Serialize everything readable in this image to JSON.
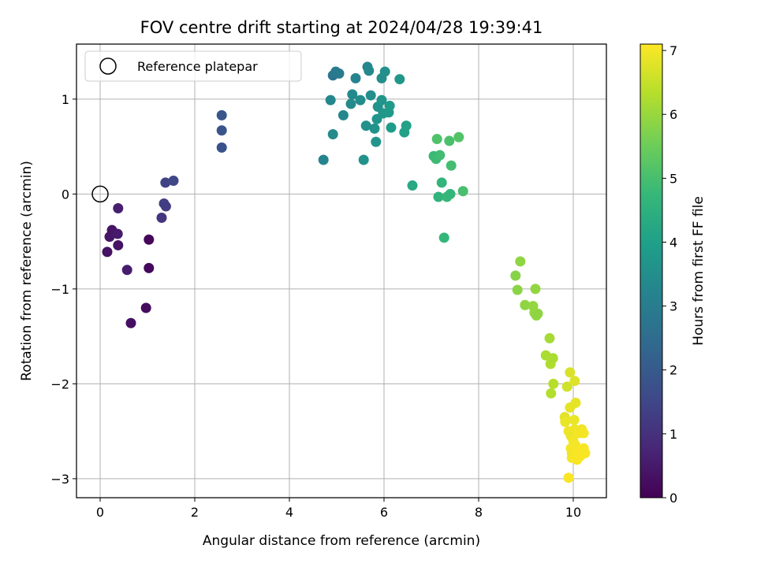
{
  "chart_data": {
    "type": "scatter",
    "title": "FOV centre drift starting at 2024/04/28 19:39:41",
    "xlabel": "Angular distance from reference (arcmin)",
    "ylabel": "Rotation from reference (arcmin)",
    "xlim": [
      -0.5,
      10.7
    ],
    "ylim": [
      -3.2,
      1.58
    ],
    "xticks": [
      0,
      2,
      4,
      6,
      8,
      10
    ],
    "yticks": [
      -3,
      -2,
      -1,
      0,
      1
    ],
    "xtick_labels": [
      "0",
      "2",
      "4",
      "6",
      "8",
      "10"
    ],
    "ytick_labels": [
      "−3",
      "−2",
      "−1",
      "0",
      "1"
    ],
    "grid": true,
    "legend": {
      "position": "top-left",
      "entries": [
        "Reference platepar"
      ]
    },
    "reference_point": {
      "x": 0,
      "y": 0,
      "label": "Reference platepar"
    },
    "colorbar": {
      "label": "Hours from first FF file",
      "colormap": "viridis",
      "range": [
        0,
        7.1
      ],
      "ticks": [
        0,
        1,
        2,
        3,
        4,
        5,
        6,
        7
      ],
      "tick_labels": [
        "0",
        "1",
        "2",
        "3",
        "4",
        "5",
        "6",
        "7"
      ]
    },
    "points": [
      {
        "x": 0.15,
        "y": -0.61,
        "h": 0.35
      },
      {
        "x": 0.2,
        "y": -0.45,
        "h": 0.45
      },
      {
        "x": 0.25,
        "y": -0.38,
        "h": 0.4
      },
      {
        "x": 0.37,
        "y": -0.42,
        "h": 0.5
      },
      {
        "x": 0.38,
        "y": -0.54,
        "h": 0.35
      },
      {
        "x": 0.38,
        "y": -0.15,
        "h": 0.6
      },
      {
        "x": 0.57,
        "y": -0.8,
        "h": 0.55
      },
      {
        "x": 0.65,
        "y": -1.36,
        "h": 0.3
      },
      {
        "x": 0.97,
        "y": -1.2,
        "h": 0.2
      },
      {
        "x": 1.03,
        "y": -0.48,
        "h": 0.1
      },
      {
        "x": 1.03,
        "y": -0.78,
        "h": 0.15
      },
      {
        "x": 1.3,
        "y": -0.25,
        "h": 1.1
      },
      {
        "x": 1.35,
        "y": -0.1,
        "h": 1.3
      },
      {
        "x": 1.39,
        "y": -0.13,
        "h": 1.25
      },
      {
        "x": 1.38,
        "y": 0.12,
        "h": 1.4
      },
      {
        "x": 1.55,
        "y": 0.14,
        "h": 1.5
      },
      {
        "x": 2.57,
        "y": 0.83,
        "h": 1.9
      },
      {
        "x": 2.57,
        "y": 0.67,
        "h": 1.85
      },
      {
        "x": 2.57,
        "y": 0.49,
        "h": 1.8
      },
      {
        "x": 4.72,
        "y": 0.36,
        "h": 3.2
      },
      {
        "x": 4.87,
        "y": 0.99,
        "h": 3.3
      },
      {
        "x": 4.92,
        "y": 0.63,
        "h": 3.4
      },
      {
        "x": 4.92,
        "y": 1.25,
        "h": 2.8
      },
      {
        "x": 4.98,
        "y": 1.29,
        "h": 2.9
      },
      {
        "x": 5.05,
        "y": 1.27,
        "h": 2.9
      },
      {
        "x": 5.14,
        "y": 0.83,
        "h": 3.3
      },
      {
        "x": 5.3,
        "y": 0.95,
        "h": 3.4
      },
      {
        "x": 5.33,
        "y": 1.05,
        "h": 3.35
      },
      {
        "x": 5.4,
        "y": 1.22,
        "h": 3.2
      },
      {
        "x": 5.5,
        "y": 0.99,
        "h": 3.45
      },
      {
        "x": 5.57,
        "y": 0.36,
        "h": 3.6
      },
      {
        "x": 5.62,
        "y": 0.72,
        "h": 3.55
      },
      {
        "x": 5.65,
        "y": 1.34,
        "h": 3.3
      },
      {
        "x": 5.68,
        "y": 1.3,
        "h": 3.35
      },
      {
        "x": 5.72,
        "y": 1.04,
        "h": 3.5
      },
      {
        "x": 5.8,
        "y": 0.69,
        "h": 3.6
      },
      {
        "x": 5.83,
        "y": 0.55,
        "h": 3.65
      },
      {
        "x": 5.85,
        "y": 0.79,
        "h": 3.7
      },
      {
        "x": 5.87,
        "y": 0.92,
        "h": 3.6
      },
      {
        "x": 5.95,
        "y": 0.99,
        "h": 3.7
      },
      {
        "x": 5.95,
        "y": 1.22,
        "h": 3.5
      },
      {
        "x": 5.98,
        "y": 0.85,
        "h": 3.75
      },
      {
        "x": 6.02,
        "y": 1.29,
        "h": 3.55
      },
      {
        "x": 6.1,
        "y": 0.86,
        "h": 3.8
      },
      {
        "x": 6.12,
        "y": 0.93,
        "h": 3.85
      },
      {
        "x": 6.15,
        "y": 0.7,
        "h": 3.9
      },
      {
        "x": 6.33,
        "y": 1.21,
        "h": 3.75
      },
      {
        "x": 6.43,
        "y": 0.65,
        "h": 4.0
      },
      {
        "x": 6.47,
        "y": 0.72,
        "h": 4.05
      },
      {
        "x": 6.6,
        "y": 0.09,
        "h": 4.25
      },
      {
        "x": 7.05,
        "y": 0.4,
        "h": 4.8
      },
      {
        "x": 7.1,
        "y": 0.37,
        "h": 4.85
      },
      {
        "x": 7.12,
        "y": 0.58,
        "h": 5.1
      },
      {
        "x": 7.15,
        "y": -0.03,
        "h": 4.6
      },
      {
        "x": 7.18,
        "y": 0.41,
        "h": 4.9
      },
      {
        "x": 7.22,
        "y": 0.12,
        "h": 4.65
      },
      {
        "x": 7.27,
        "y": -0.46,
        "h": 4.7
      },
      {
        "x": 7.33,
        "y": -0.03,
        "h": 4.75
      },
      {
        "x": 7.38,
        "y": 0.56,
        "h": 5.05
      },
      {
        "x": 7.4,
        "y": 0.0,
        "h": 4.7
      },
      {
        "x": 7.42,
        "y": 0.3,
        "h": 4.95
      },
      {
        "x": 7.58,
        "y": 0.6,
        "h": 5.15
      },
      {
        "x": 7.67,
        "y": 0.03,
        "h": 5.0
      },
      {
        "x": 8.78,
        "y": -0.86,
        "h": 5.8
      },
      {
        "x": 8.82,
        "y": -1.01,
        "h": 5.85
      },
      {
        "x": 8.88,
        "y": -0.71,
        "h": 5.9
      },
      {
        "x": 8.98,
        "y": -1.17,
        "h": 5.9
      },
      {
        "x": 9.15,
        "y": -1.18,
        "h": 5.95
      },
      {
        "x": 9.18,
        "y": -1.25,
        "h": 5.95
      },
      {
        "x": 9.2,
        "y": -1.0,
        "h": 5.95
      },
      {
        "x": 9.22,
        "y": -1.28,
        "h": 5.9
      },
      {
        "x": 9.25,
        "y": -1.26,
        "h": 5.9
      },
      {
        "x": 9.42,
        "y": -1.7,
        "h": 6.2
      },
      {
        "x": 9.5,
        "y": -1.52,
        "h": 6.15
      },
      {
        "x": 9.52,
        "y": -1.79,
        "h": 6.25
      },
      {
        "x": 9.53,
        "y": -2.1,
        "h": 6.3
      },
      {
        "x": 9.57,
        "y": -1.73,
        "h": 6.2
      },
      {
        "x": 9.58,
        "y": -2.0,
        "h": 6.35
      },
      {
        "x": 9.82,
        "y": -2.35,
        "h": 6.8
      },
      {
        "x": 9.83,
        "y": -2.4,
        "h": 6.9
      },
      {
        "x": 9.87,
        "y": -2.03,
        "h": 6.6
      },
      {
        "x": 9.9,
        "y": -2.5,
        "h": 6.95
      },
      {
        "x": 9.9,
        "y": -2.99,
        "h": 7.05
      },
      {
        "x": 9.93,
        "y": -1.88,
        "h": 6.7
      },
      {
        "x": 9.93,
        "y": -2.25,
        "h": 6.85
      },
      {
        "x": 9.95,
        "y": -2.55,
        "h": 6.9
      },
      {
        "x": 9.95,
        "y": -2.68,
        "h": 7.0
      },
      {
        "x": 9.97,
        "y": -2.73,
        "h": 6.95
      },
      {
        "x": 9.97,
        "y": -2.78,
        "h": 7.0
      },
      {
        "x": 10.0,
        "y": -2.6,
        "h": 7.0
      },
      {
        "x": 10.02,
        "y": -2.38,
        "h": 6.9
      },
      {
        "x": 10.03,
        "y": -1.97,
        "h": 6.75
      },
      {
        "x": 10.03,
        "y": -2.48,
        "h": 6.95
      },
      {
        "x": 10.05,
        "y": -2.2,
        "h": 6.85
      },
      {
        "x": 10.05,
        "y": -2.65,
        "h": 7.0
      },
      {
        "x": 10.07,
        "y": -2.72,
        "h": 7.05
      },
      {
        "x": 10.08,
        "y": -2.8,
        "h": 7.05
      },
      {
        "x": 10.12,
        "y": -2.52,
        "h": 7.0
      },
      {
        "x": 10.15,
        "y": -2.76,
        "h": 7.05
      },
      {
        "x": 10.18,
        "y": -2.48,
        "h": 6.95
      },
      {
        "x": 10.22,
        "y": -2.68,
        "h": 7.05
      },
      {
        "x": 10.22,
        "y": -2.52,
        "h": 7.0
      },
      {
        "x": 10.25,
        "y": -2.73,
        "h": 7.05
      }
    ]
  }
}
